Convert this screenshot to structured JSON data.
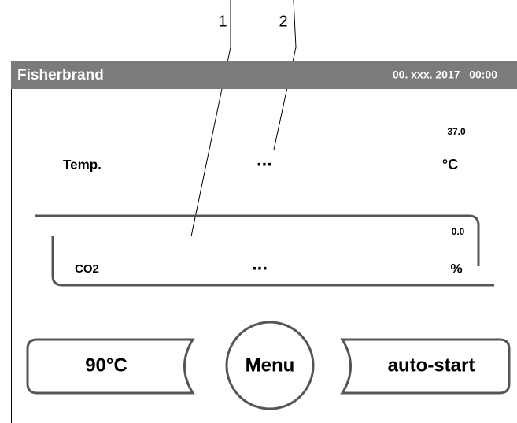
{
  "callouts": [
    "1",
    "2"
  ],
  "header": {
    "title": "Fisherbrand",
    "datetime": "00. xxx. 2017   00:00"
  },
  "rows": [
    {
      "label": "Temp.",
      "value": "...",
      "setpoint": "37.0",
      "unit": "°C"
    },
    {
      "label": "CO2",
      "value": "...",
      "setpoint": "0.0",
      "unit": "%"
    }
  ],
  "buttons": [
    "90°C",
    "Menu",
    "auto-start"
  ]
}
